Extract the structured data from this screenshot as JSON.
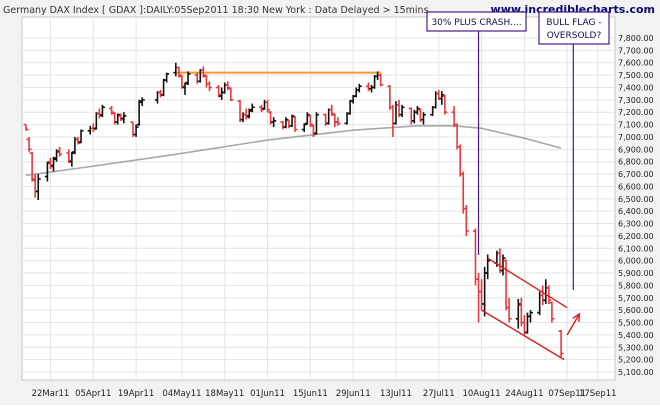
{
  "header": {
    "title": "Germany DAX Index [ GDAX ]:DAILY:05Sep2011 18:30 New York : Data Delayed > 15mins",
    "site": "www.incrediblecharts.com"
  },
  "annotations": {
    "crash_label": "30% PLUS CRASH....",
    "flag_label_line1": "BULL FLAG -",
    "flag_label_line2": "OVERSOLD?"
  },
  "chart_data": {
    "type": "ohlc",
    "title": "Germany DAX Index [ GDAX ]:DAILY:05Sep2011 18:30 New York : Data Delayed > 15mins",
    "xlabel": "",
    "ylabel": "",
    "ylim": [
      5100,
      7800
    ],
    "y_ticks": [
      5100,
      5200,
      5300,
      5400,
      5500,
      5600,
      5700,
      5800,
      5900,
      6000,
      6100,
      6200,
      6300,
      6400,
      6500,
      6600,
      6700,
      6800,
      6900,
      7000,
      7100,
      7200,
      7300,
      7400,
      7500,
      7600,
      7700,
      7800
    ],
    "y_tick_labels": [
      "5,100.00",
      "5,200.00",
      "5,300.00",
      "5,400.00",
      "5,500.00",
      "5,600.00",
      "5,700.00",
      "5,800.00",
      "5,900.00",
      "6,000.00",
      "6,100.00",
      "6,200.00",
      "6,300.00",
      "6,400.00",
      "6,500.00",
      "6,600.00",
      "6,700.00",
      "6,800.00",
      "6,900.00",
      "7,000.00",
      "7,100.00",
      "7,200.00",
      "7,300.00",
      "7,400.00",
      "7,500.00",
      "7,600.00",
      "7,700.00",
      "7,800.00"
    ],
    "x_range": [
      "2011-03-14",
      "2011-09-21"
    ],
    "x_ticks": [
      {
        "date": "2011-03-22",
        "label": "22Mar11"
      },
      {
        "date": "2011-04-05",
        "label": "05Apr11"
      },
      {
        "date": "2011-04-19",
        "label": "19Apr11"
      },
      {
        "date": "2011-05-04",
        "label": "04May11"
      },
      {
        "date": "2011-05-18",
        "label": "18May11"
      },
      {
        "date": "2011-06-01",
        "label": "01Jun11"
      },
      {
        "date": "2011-06-15",
        "label": "15Jun11"
      },
      {
        "date": "2011-06-29",
        "label": "29Jun11"
      },
      {
        "date": "2011-07-13",
        "label": "13Jul11"
      },
      {
        "date": "2011-07-27",
        "label": "27Jul11"
      },
      {
        "date": "2011-08-10",
        "label": "10Aug11"
      },
      {
        "date": "2011-08-24",
        "label": "24Aug11"
      },
      {
        "date": "2011-09-07",
        "label": "07Sep11"
      },
      {
        "date": "2011-09-17",
        "label": "17Sep11"
      }
    ],
    "grid": true,
    "colors": {
      "up": "#111111",
      "down": "#e8383f",
      "ma": "#a8a8a8",
      "resistance": "#f39a2b",
      "channel": "#dd1c1c",
      "marker": "#4b1a8c"
    },
    "resistance_level": {
      "value": 7520,
      "from": "2011-05-02",
      "to": "2011-07-08"
    },
    "moving_average": [
      {
        "date": "2011-03-14",
        "value": 6690
      },
      {
        "date": "2011-04-01",
        "value": 6750
      },
      {
        "date": "2011-05-02",
        "value": 6860
      },
      {
        "date": "2011-06-01",
        "value": 6975
      },
      {
        "date": "2011-06-29",
        "value": 7055
      },
      {
        "date": "2011-07-20",
        "value": 7090
      },
      {
        "date": "2011-08-01",
        "value": 7090
      },
      {
        "date": "2011-08-10",
        "value": 7070
      },
      {
        "date": "2011-08-24",
        "value": 6990
      },
      {
        "date": "2011-09-05",
        "value": 6910
      }
    ],
    "channel_lines": [
      {
        "from": {
          "date": "2011-08-12",
          "value": 6020
        },
        "to": {
          "date": "2011-09-07",
          "value": 5620
        }
      },
      {
        "from": {
          "date": "2011-08-10",
          "value": 5600
        },
        "to": {
          "date": "2011-09-06",
          "value": 5200
        }
      }
    ],
    "breakout_arrow": {
      "from": {
        "date": "2011-09-07",
        "value": 5400
      },
      "to": {
        "date": "2011-09-11",
        "value": 5570
      }
    },
    "vertical_markers": [
      {
        "date": "2011-08-09",
        "label": "30% PLUS CRASH...."
      },
      {
        "date": "2011-09-09",
        "label": "BULL FLAG - OVERSOLD?"
      }
    ],
    "bars": [
      {
        "d": "2011-03-14",
        "o": 7100,
        "h": 7100,
        "l": 7050,
        "c": 7060
      },
      {
        "d": "2011-03-15",
        "o": 6980,
        "h": 7000,
        "l": 6880,
        "c": 6900
      },
      {
        "d": "2011-03-16",
        "o": 6870,
        "h": 6880,
        "l": 6640,
        "c": 6660
      },
      {
        "d": "2011-03-17",
        "o": 6650,
        "h": 6700,
        "l": 6510,
        "c": 6560
      },
      {
        "d": "2011-03-18",
        "o": 6560,
        "h": 6700,
        "l": 6490,
        "c": 6660
      },
      {
        "d": "2011-03-21",
        "o": 6680,
        "h": 6800,
        "l": 6640,
        "c": 6790
      },
      {
        "d": "2011-03-22",
        "o": 6800,
        "h": 6830,
        "l": 6740,
        "c": 6760
      },
      {
        "d": "2011-03-23",
        "o": 6770,
        "h": 6840,
        "l": 6720,
        "c": 6820
      },
      {
        "d": "2011-03-24",
        "o": 6830,
        "h": 6900,
        "l": 6800,
        "c": 6880
      },
      {
        "d": "2011-03-25",
        "o": 6890,
        "h": 6920,
        "l": 6840,
        "c": 6860
      },
      {
        "d": "2011-03-28",
        "o": 6870,
        "h": 6900,
        "l": 6790,
        "c": 6810
      },
      {
        "d": "2011-03-29",
        "o": 6800,
        "h": 6880,
        "l": 6760,
        "c": 6870
      },
      {
        "d": "2011-03-30",
        "o": 6880,
        "h": 7000,
        "l": 6860,
        "c": 6980
      },
      {
        "d": "2011-03-31",
        "o": 6980,
        "h": 7000,
        "l": 6940,
        "c": 6950
      },
      {
        "d": "2011-04-01",
        "o": 6960,
        "h": 7060,
        "l": 6950,
        "c": 7050
      },
      {
        "d": "2011-04-04",
        "o": 7050,
        "h": 7090,
        "l": 7020,
        "c": 7070
      },
      {
        "d": "2011-04-05",
        "o": 7070,
        "h": 7110,
        "l": 7040,
        "c": 7060
      },
      {
        "d": "2011-04-06",
        "o": 7070,
        "h": 7200,
        "l": 7060,
        "c": 7190
      },
      {
        "d": "2011-04-07",
        "o": 7190,
        "h": 7230,
        "l": 7150,
        "c": 7170
      },
      {
        "d": "2011-04-08",
        "o": 7180,
        "h": 7260,
        "l": 7160,
        "c": 7240
      },
      {
        "d": "2011-04-11",
        "o": 7230,
        "h": 7250,
        "l": 7180,
        "c": 7200
      },
      {
        "d": "2011-04-12",
        "o": 7190,
        "h": 7200,
        "l": 7100,
        "c": 7120
      },
      {
        "d": "2011-04-13",
        "o": 7120,
        "h": 7190,
        "l": 7100,
        "c": 7180
      },
      {
        "d": "2011-04-14",
        "o": 7170,
        "h": 7190,
        "l": 7130,
        "c": 7140
      },
      {
        "d": "2011-04-15",
        "o": 7150,
        "h": 7200,
        "l": 7110,
        "c": 7170
      },
      {
        "d": "2011-04-18",
        "o": 7120,
        "h": 7120,
        "l": 7000,
        "c": 7020
      },
      {
        "d": "2011-04-19",
        "o": 7020,
        "h": 7100,
        "l": 7000,
        "c": 7080
      },
      {
        "d": "2011-04-20",
        "o": 7100,
        "h": 7300,
        "l": 7090,
        "c": 7280
      },
      {
        "d": "2011-04-21",
        "o": 7290,
        "h": 7320,
        "l": 7250,
        "c": 7300
      },
      {
        "d": "2011-04-26",
        "o": 7300,
        "h": 7370,
        "l": 7270,
        "c": 7360
      },
      {
        "d": "2011-04-27",
        "o": 7360,
        "h": 7380,
        "l": 7320,
        "c": 7340
      },
      {
        "d": "2011-04-28",
        "o": 7340,
        "h": 7470,
        "l": 7330,
        "c": 7460
      },
      {
        "d": "2011-04-29",
        "o": 7460,
        "h": 7520,
        "l": 7440,
        "c": 7510
      },
      {
        "d": "2011-05-02",
        "o": 7520,
        "h": 7600,
        "l": 7490,
        "c": 7560
      },
      {
        "d": "2011-05-03",
        "o": 7560,
        "h": 7570,
        "l": 7480,
        "c": 7500
      },
      {
        "d": "2011-05-04",
        "o": 7490,
        "h": 7500,
        "l": 7390,
        "c": 7410
      },
      {
        "d": "2011-05-05",
        "o": 7400,
        "h": 7440,
        "l": 7340,
        "c": 7430
      },
      {
        "d": "2011-05-06",
        "o": 7440,
        "h": 7530,
        "l": 7420,
        "c": 7510
      },
      {
        "d": "2011-05-09",
        "o": 7500,
        "h": 7520,
        "l": 7430,
        "c": 7450
      },
      {
        "d": "2011-05-10",
        "o": 7450,
        "h": 7550,
        "l": 7440,
        "c": 7540
      },
      {
        "d": "2011-05-11",
        "o": 7540,
        "h": 7570,
        "l": 7480,
        "c": 7500
      },
      {
        "d": "2011-05-12",
        "o": 7490,
        "h": 7500,
        "l": 7400,
        "c": 7430
      },
      {
        "d": "2011-05-13",
        "o": 7430,
        "h": 7450,
        "l": 7370,
        "c": 7400
      },
      {
        "d": "2011-05-16",
        "o": 7400,
        "h": 7420,
        "l": 7320,
        "c": 7340
      },
      {
        "d": "2011-05-17",
        "o": 7330,
        "h": 7400,
        "l": 7300,
        "c": 7360
      },
      {
        "d": "2011-05-18",
        "o": 7360,
        "h": 7440,
        "l": 7350,
        "c": 7420
      },
      {
        "d": "2011-05-19",
        "o": 7420,
        "h": 7450,
        "l": 7380,
        "c": 7400
      },
      {
        "d": "2011-05-20",
        "o": 7390,
        "h": 7400,
        "l": 7290,
        "c": 7300
      },
      {
        "d": "2011-05-23",
        "o": 7290,
        "h": 7300,
        "l": 7120,
        "c": 7140
      },
      {
        "d": "2011-05-24",
        "o": 7140,
        "h": 7200,
        "l": 7120,
        "c": 7180
      },
      {
        "d": "2011-05-25",
        "o": 7180,
        "h": 7230,
        "l": 7140,
        "c": 7160
      },
      {
        "d": "2011-05-26",
        "o": 7170,
        "h": 7230,
        "l": 7150,
        "c": 7210
      },
      {
        "d": "2011-05-27",
        "o": 7220,
        "h": 7270,
        "l": 7200,
        "c": 7240
      },
      {
        "d": "2011-05-30",
        "o": 7240,
        "h": 7260,
        "l": 7200,
        "c": 7220
      },
      {
        "d": "2011-05-31",
        "o": 7230,
        "h": 7300,
        "l": 7220,
        "c": 7280
      },
      {
        "d": "2011-06-01",
        "o": 7280,
        "h": 7300,
        "l": 7200,
        "c": 7220
      },
      {
        "d": "2011-06-02",
        "o": 7200,
        "h": 7210,
        "l": 7100,
        "c": 7120
      },
      {
        "d": "2011-06-03",
        "o": 7120,
        "h": 7160,
        "l": 7080,
        "c": 7130
      },
      {
        "d": "2011-06-06",
        "o": 7120,
        "h": 7130,
        "l": 7060,
        "c": 7080
      },
      {
        "d": "2011-06-07",
        "o": 7080,
        "h": 7160,
        "l": 7070,
        "c": 7140
      },
      {
        "d": "2011-06-08",
        "o": 7130,
        "h": 7140,
        "l": 7070,
        "c": 7090
      },
      {
        "d": "2011-06-09",
        "o": 7090,
        "h": 7180,
        "l": 7080,
        "c": 7170
      },
      {
        "d": "2011-06-10",
        "o": 7160,
        "h": 7170,
        "l": 7040,
        "c": 7060
      },
      {
        "d": "2011-06-13",
        "o": 7060,
        "h": 7110,
        "l": 7040,
        "c": 7100
      },
      {
        "d": "2011-06-14",
        "o": 7110,
        "h": 7200,
        "l": 7100,
        "c": 7180
      },
      {
        "d": "2011-06-15",
        "o": 7170,
        "h": 7180,
        "l": 7080,
        "c": 7100
      },
      {
        "d": "2011-06-16",
        "o": 7090,
        "h": 7100,
        "l": 7000,
        "c": 7020
      },
      {
        "d": "2011-06-17",
        "o": 7030,
        "h": 7200,
        "l": 7020,
        "c": 7180
      },
      {
        "d": "2011-06-20",
        "o": 7180,
        "h": 7190,
        "l": 7090,
        "c": 7110
      },
      {
        "d": "2011-06-21",
        "o": 7110,
        "h": 7230,
        "l": 7100,
        "c": 7220
      },
      {
        "d": "2011-06-22",
        "o": 7220,
        "h": 7260,
        "l": 7170,
        "c": 7190
      },
      {
        "d": "2011-06-23",
        "o": 7180,
        "h": 7190,
        "l": 7080,
        "c": 7120
      },
      {
        "d": "2011-06-24",
        "o": 7120,
        "h": 7160,
        "l": 7090,
        "c": 7110
      },
      {
        "d": "2011-06-27",
        "o": 7110,
        "h": 7200,
        "l": 7100,
        "c": 7190
      },
      {
        "d": "2011-06-28",
        "o": 7190,
        "h": 7300,
        "l": 7180,
        "c": 7290
      },
      {
        "d": "2011-06-29",
        "o": 7290,
        "h": 7340,
        "l": 7270,
        "c": 7330
      },
      {
        "d": "2011-06-30",
        "o": 7330,
        "h": 7400,
        "l": 7320,
        "c": 7380
      },
      {
        "d": "2011-07-01",
        "o": 7380,
        "h": 7430,
        "l": 7360,
        "c": 7410
      },
      {
        "d": "2011-07-04",
        "o": 7410,
        "h": 7440,
        "l": 7370,
        "c": 7390
      },
      {
        "d": "2011-07-05",
        "o": 7390,
        "h": 7420,
        "l": 7360,
        "c": 7400
      },
      {
        "d": "2011-07-06",
        "o": 7400,
        "h": 7500,
        "l": 7390,
        "c": 7490
      },
      {
        "d": "2011-07-07",
        "o": 7490,
        "h": 7530,
        "l": 7460,
        "c": 7500
      },
      {
        "d": "2011-07-08",
        "o": 7500,
        "h": 7510,
        "l": 7410,
        "c": 7420
      },
      {
        "d": "2011-07-11",
        "o": 7410,
        "h": 7420,
        "l": 7220,
        "c": 7240
      },
      {
        "d": "2011-07-12",
        "o": 7240,
        "h": 7260,
        "l": 7000,
        "c": 7110
      },
      {
        "d": "2011-07-13",
        "o": 7110,
        "h": 7290,
        "l": 7100,
        "c": 7260
      },
      {
        "d": "2011-07-14",
        "o": 7260,
        "h": 7300,
        "l": 7160,
        "c": 7180
      },
      {
        "d": "2011-07-15",
        "o": 7180,
        "h": 7260,
        "l": 7160,
        "c": 7240
      },
      {
        "d": "2011-07-18",
        "o": 7230,
        "h": 7240,
        "l": 7100,
        "c": 7130
      },
      {
        "d": "2011-07-19",
        "o": 7130,
        "h": 7220,
        "l": 7110,
        "c": 7200
      },
      {
        "d": "2011-07-20",
        "o": 7200,
        "h": 7250,
        "l": 7180,
        "c": 7230
      },
      {
        "d": "2011-07-21",
        "o": 7220,
        "h": 7230,
        "l": 7120,
        "c": 7140
      },
      {
        "d": "2011-07-22",
        "o": 7140,
        "h": 7200,
        "l": 7100,
        "c": 7180
      },
      {
        "d": "2011-07-25",
        "o": 7180,
        "h": 7250,
        "l": 7170,
        "c": 7240
      },
      {
        "d": "2011-07-26",
        "o": 7240,
        "h": 7370,
        "l": 7230,
        "c": 7350
      },
      {
        "d": "2011-07-27",
        "o": 7350,
        "h": 7380,
        "l": 7300,
        "c": 7310
      },
      {
        "d": "2011-07-28",
        "o": 7310,
        "h": 7370,
        "l": 7260,
        "c": 7340
      },
      {
        "d": "2011-07-29",
        "o": 7330,
        "h": 7340,
        "l": 7180,
        "c": 7200
      },
      {
        "d": "2011-08-01",
        "o": 7200,
        "h": 7250,
        "l": 7080,
        "c": 7100
      },
      {
        "d": "2011-08-02",
        "o": 7100,
        "h": 7110,
        "l": 6900,
        "c": 6920
      },
      {
        "d": "2011-08-03",
        "o": 6920,
        "h": 6940,
        "l": 6680,
        "c": 6700
      },
      {
        "d": "2011-08-04",
        "o": 6700,
        "h": 6720,
        "l": 6380,
        "c": 6420
      },
      {
        "d": "2011-08-05",
        "o": 6420,
        "h": 6450,
        "l": 6200,
        "c": 6240
      },
      {
        "d": "2011-08-08",
        "o": 6240,
        "h": 6260,
        "l": 5800,
        "c": 5850
      },
      {
        "d": "2011-08-09",
        "o": 5850,
        "h": 5900,
        "l": 5500,
        "c": 5750
      },
      {
        "d": "2011-08-10",
        "o": 5750,
        "h": 5850,
        "l": 5600,
        "c": 5650
      },
      {
        "d": "2011-08-11",
        "o": 5650,
        "h": 5950,
        "l": 5550,
        "c": 5900
      },
      {
        "d": "2011-08-12",
        "o": 5900,
        "h": 6050,
        "l": 5850,
        "c": 6000
      },
      {
        "d": "2011-08-15",
        "o": 5980,
        "h": 6080,
        "l": 5950,
        "c": 6060
      },
      {
        "d": "2011-08-16",
        "o": 6060,
        "h": 6100,
        "l": 5900,
        "c": 5920
      },
      {
        "d": "2011-08-17",
        "o": 5920,
        "h": 6050,
        "l": 5880,
        "c": 6020
      },
      {
        "d": "2011-08-18",
        "o": 6000,
        "h": 6010,
        "l": 5600,
        "c": 5620
      },
      {
        "d": "2011-08-19",
        "o": 5620,
        "h": 5700,
        "l": 5500,
        "c": 5530
      },
      {
        "d": "2011-08-22",
        "o": 5530,
        "h": 5690,
        "l": 5450,
        "c": 5650
      },
      {
        "d": "2011-08-23",
        "o": 5640,
        "h": 5700,
        "l": 5470,
        "c": 5500
      },
      {
        "d": "2011-08-24",
        "o": 5500,
        "h": 5560,
        "l": 5400,
        "c": 5420
      },
      {
        "d": "2011-08-25",
        "o": 5420,
        "h": 5580,
        "l": 5410,
        "c": 5550
      },
      {
        "d": "2011-08-26",
        "o": 5550,
        "h": 5600,
        "l": 5500,
        "c": 5580
      },
      {
        "d": "2011-08-29",
        "o": 5580,
        "h": 5750,
        "l": 5560,
        "c": 5720
      },
      {
        "d": "2011-08-30",
        "o": 5720,
        "h": 5800,
        "l": 5640,
        "c": 5680
      },
      {
        "d": "2011-08-31",
        "o": 5680,
        "h": 5850,
        "l": 5650,
        "c": 5780
      },
      {
        "d": "2011-09-01",
        "o": 5780,
        "h": 5800,
        "l": 5650,
        "c": 5680
      },
      {
        "d": "2011-09-02",
        "o": 5660,
        "h": 5670,
        "l": 5500,
        "c": 5530
      },
      {
        "d": "2011-09-05",
        "o": 5430,
        "h": 5440,
        "l": 5220,
        "c": 5250
      }
    ]
  }
}
